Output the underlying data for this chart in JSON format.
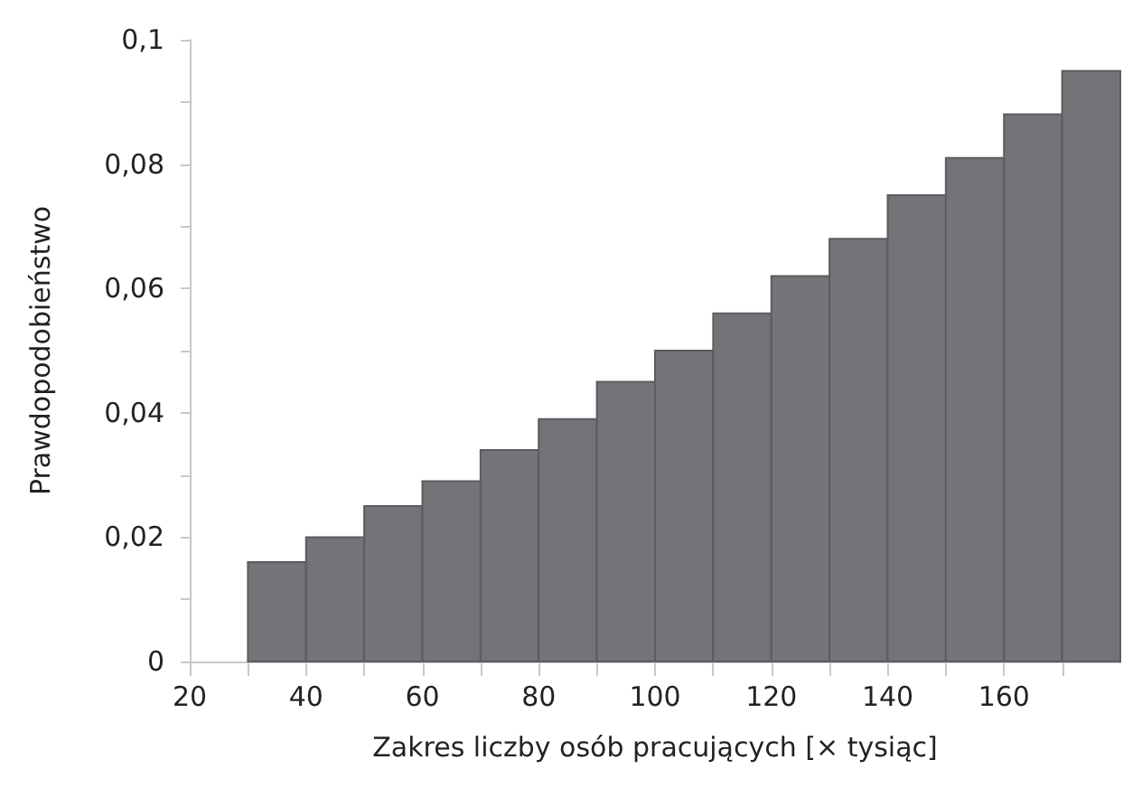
{
  "chart_data": {
    "type": "histogram",
    "xlabel": "Zakres liczby osób pracujących [× tysiąc]",
    "ylabel": "Prawdopodobieństwo",
    "bins": [
      30,
      40,
      50,
      60,
      70,
      80,
      90,
      100,
      110,
      120,
      130,
      140,
      150,
      160,
      170,
      180
    ],
    "values": [
      0.016,
      0.02,
      0.025,
      0.029,
      0.034,
      0.039,
      0.045,
      0.05,
      0.056,
      0.062,
      0.068,
      0.075,
      0.081,
      0.088,
      0.095
    ],
    "color": "#747478",
    "xlim": [
      20,
      180
    ],
    "xticks": [
      20,
      {
        "value": 30,
        "label": null
      },
      40,
      {
        "value": 50,
        "label": null
      },
      60,
      {
        "value": 70,
        "label": null
      },
      80,
      {
        "value": 90,
        "label": null
      },
      100,
      {
        "value": 110,
        "label": null
      },
      120,
      {
        "value": 130,
        "label": null
      },
      140,
      {
        "value": 150,
        "label": null
      },
      160,
      {
        "value": 170,
        "label": null
      }
    ],
    "ylim": [
      0,
      0.1
    ],
    "yticks": [
      {
        "value": 0,
        "label": "0"
      },
      {
        "value": 0.01,
        "label": null
      },
      {
        "value": 0.02,
        "label": "0,02"
      },
      {
        "value": 0.03,
        "label": null
      },
      {
        "value": 0.04,
        "label": "0,04"
      },
      {
        "value": 0.05,
        "label": null
      },
      {
        "value": 0.06,
        "label": "0,06"
      },
      {
        "value": 0.07,
        "label": null
      },
      {
        "value": 0.08,
        "label": "0,08"
      },
      {
        "value": 0.09,
        "label": null
      },
      {
        "value": 0.1,
        "label": "0,1"
      }
    ],
    "grid": false
  }
}
